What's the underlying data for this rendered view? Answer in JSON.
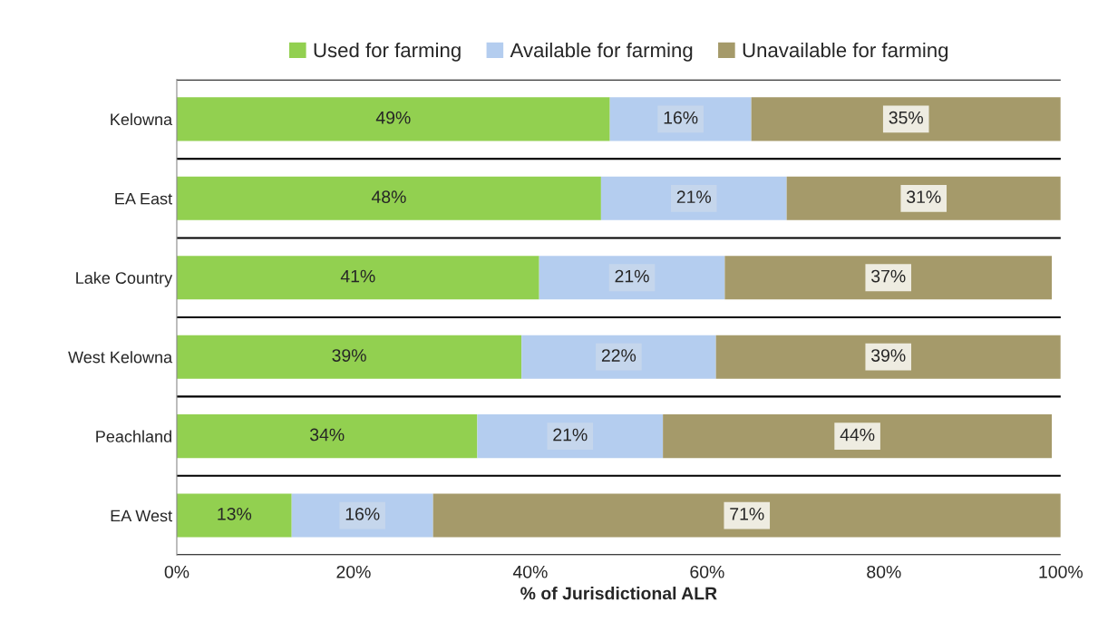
{
  "chart_data": {
    "type": "bar",
    "orientation": "horizontal",
    "stacked": true,
    "categories": [
      "Kelowna",
      "EA East",
      "Lake Country",
      "West Kelowna",
      "Peachland",
      "EA West"
    ],
    "xlabel": "% of Jurisdictional ALR",
    "xlim": [
      0,
      100
    ],
    "xticks": [
      {
        "value": 0,
        "label": "0%"
      },
      {
        "value": 20,
        "label": "20%"
      },
      {
        "value": 40,
        "label": "40%"
      },
      {
        "value": 60,
        "label": "60%"
      },
      {
        "value": 80,
        "label": "80%"
      },
      {
        "value": 100,
        "label": "100%"
      }
    ],
    "series": [
      {
        "name": "Used for farming",
        "color": "#92d050",
        "values": [
          49,
          48,
          41,
          39,
          34,
          13
        ],
        "value_labels": [
          "49%",
          "48%",
          "41%",
          "39%",
          "34%",
          "13%"
        ]
      },
      {
        "name": "Available for farming",
        "color": "#b4cdef",
        "values": [
          16,
          21,
          21,
          22,
          21,
          16
        ],
        "value_labels": [
          "16%",
          "21%",
          "21%",
          "22%",
          "21%",
          "16%"
        ]
      },
      {
        "name": "Unavailable for farming",
        "color": "#a59a6a",
        "values": [
          35,
          31,
          37,
          39,
          44,
          71
        ],
        "value_labels": [
          "35%",
          "31%",
          "37%",
          "39%",
          "44%",
          "71%"
        ]
      }
    ],
    "grid": "y",
    "legend": "top"
  }
}
